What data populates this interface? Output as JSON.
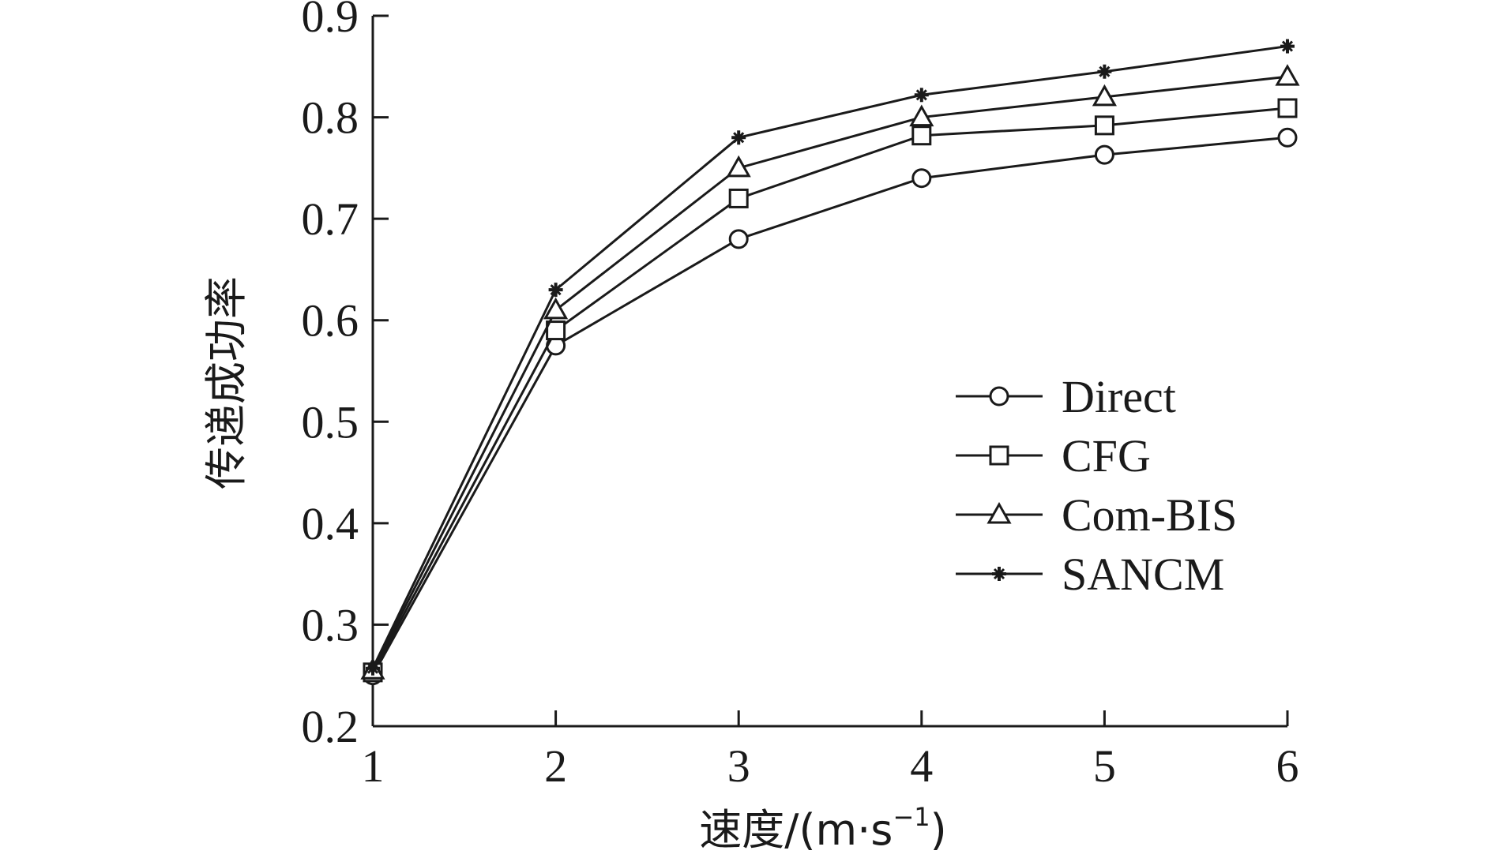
{
  "chart_data": {
    "type": "line",
    "title": "",
    "xlabel": "速度/(m·s",
    "xlabel_sup": "−1",
    "xlabel_tail": ")",
    "ylabel": "传递成功率",
    "x": [
      1,
      2,
      3,
      4,
      5,
      6
    ],
    "xlim": [
      1,
      6
    ],
    "ylim": [
      0.2,
      0.9
    ],
    "xticks": [
      "1",
      "2",
      "3",
      "4",
      "5",
      "6"
    ],
    "yticks": [
      "0.2",
      "0.3",
      "0.4",
      "0.5",
      "0.6",
      "0.7",
      "0.8",
      "0.9"
    ],
    "grid": false,
    "legend_position": "center-right",
    "series": [
      {
        "name": "Direct",
        "marker": "circle",
        "values": [
          0.25,
          0.575,
          0.68,
          0.74,
          0.763,
          0.78
        ]
      },
      {
        "name": "CFG",
        "marker": "square",
        "values": [
          0.253,
          0.59,
          0.72,
          0.782,
          0.792,
          0.809
        ]
      },
      {
        "name": "Com-BIS",
        "marker": "triangle",
        "values": [
          0.255,
          0.61,
          0.75,
          0.8,
          0.82,
          0.84
        ]
      },
      {
        "name": "SANCM",
        "marker": "star",
        "values": [
          0.257,
          0.63,
          0.78,
          0.822,
          0.845,
          0.87
        ]
      }
    ],
    "line_color": "#1a1a1a"
  }
}
